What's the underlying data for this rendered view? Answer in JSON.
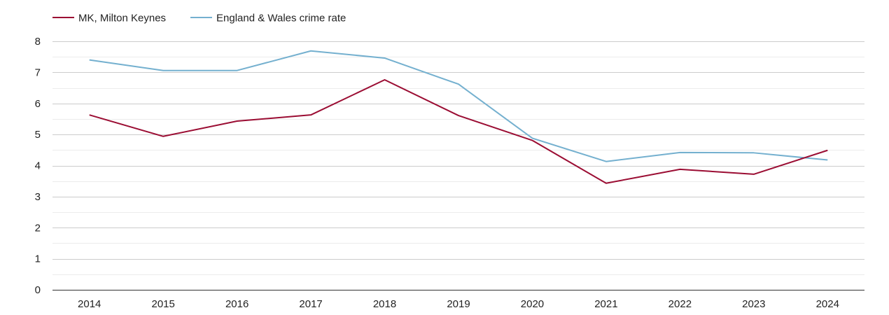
{
  "chart_data": {
    "type": "line",
    "title": "",
    "xlabel": "",
    "ylabel": "",
    "x": [
      "2014",
      "2015",
      "2016",
      "2017",
      "2018",
      "2019",
      "2020",
      "2021",
      "2022",
      "2023",
      "2024"
    ],
    "ylim": [
      0,
      8
    ],
    "y_ticks": [
      "0",
      "1",
      "2",
      "3",
      "4",
      "5",
      "6",
      "7",
      "8"
    ],
    "grid": true,
    "legend_position": "top-left",
    "series": [
      {
        "name": "MK, Milton Keynes",
        "color": "#9b0d33",
        "values": [
          5.63,
          4.94,
          5.43,
          5.63,
          6.76,
          5.61,
          4.81,
          3.43,
          3.88,
          3.72,
          4.49
        ]
      },
      {
        "name": "England & Wales crime rate",
        "color": "#74b0cf",
        "values": [
          7.4,
          7.06,
          7.06,
          7.69,
          7.46,
          6.62,
          4.88,
          4.13,
          4.42,
          4.41,
          4.18
        ]
      }
    ]
  }
}
